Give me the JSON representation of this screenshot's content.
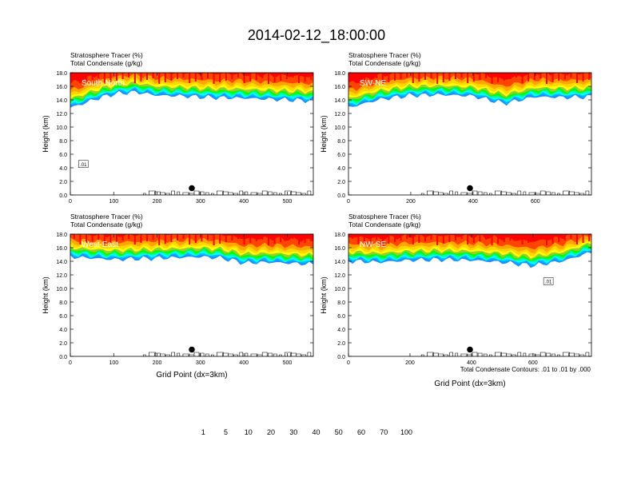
{
  "figure": {
    "title": "2014-02-12_18:00:00",
    "contour_note": "Total Condensate Contours: .01 to .01 by .000"
  },
  "colorbar": {
    "labels": [
      "1",
      "5",
      "10",
      "20",
      "30",
      "40",
      "50",
      "60",
      "70",
      "100"
    ],
    "colors": [
      "#ffffff",
      "#1e90ff",
      "#00bfff",
      "#00ffff",
      "#00fa9a",
      "#00ff00",
      "#9acd32",
      "#ffff00",
      "#ffd700",
      "#ffa500",
      "#ff4500",
      "#ff0000"
    ]
  },
  "chart_data": [
    {
      "type": "heatmap",
      "panel_label": "South-North",
      "title_line1": "Stratosphere Tracer   (%)",
      "title_line2": "Total Condensate   (g/kg)",
      "ylabel": "Height (km)",
      "xlabel": "",
      "xlim": [
        0,
        560
      ],
      "ylim": [
        0,
        18
      ],
      "xticks": [
        "0",
        "100",
        "200",
        "300",
        "400",
        "500"
      ],
      "yticks": [
        "0.0",
        "2.0",
        "4.0",
        "6.0",
        "8.0",
        "10.0",
        "12.0",
        "14.0",
        "16.0",
        "18.0"
      ],
      "contour_label": ".01",
      "marker": {
        "x": 280,
        "y": 1.0
      },
      "tracer_base_km": [
        [
          0,
          13
        ],
        [
          30,
          13.6
        ],
        [
          60,
          14.3
        ],
        [
          100,
          15
        ],
        [
          150,
          15.3
        ],
        [
          200,
          14.8
        ],
        [
          260,
          14.7
        ],
        [
          320,
          14.5
        ],
        [
          400,
          14.4
        ],
        [
          480,
          14.2
        ],
        [
          560,
          14.0
        ]
      ]
    },
    {
      "type": "heatmap",
      "panel_label": "SW-NE",
      "title_line1": "Stratosphere Tracer   (%)",
      "title_line2": "Total Condensate   (g/kg)",
      "ylabel": "Height (km)",
      "xlabel": "",
      "xlim": [
        0,
        780
      ],
      "ylim": [
        0,
        18
      ],
      "xticks": [
        "0",
        "200",
        "400",
        "600"
      ],
      "yticks": [
        "0.0",
        "2.0",
        "4.0",
        "6.0",
        "8.0",
        "10.0",
        "12.0",
        "14.0",
        "16.0",
        "18.0"
      ],
      "contour_label": "",
      "marker": {
        "x": 390,
        "y": 1.0
      },
      "tracer_base_km": [
        [
          0,
          13
        ],
        [
          100,
          14.2
        ],
        [
          200,
          14.8
        ],
        [
          300,
          14.9
        ],
        [
          400,
          14.7
        ],
        [
          500,
          13.6
        ],
        [
          600,
          14.6
        ],
        [
          700,
          14.5
        ],
        [
          780,
          14.6
        ]
      ]
    },
    {
      "type": "heatmap",
      "panel_label": "West-East",
      "title_line1": "Stratosphere Tracer   (%)",
      "title_line2": "Total Condensate   (g/kg)",
      "ylabel": "Height (km)",
      "xlabel": "Grid Point (dx=3km)",
      "xlim": [
        0,
        560
      ],
      "ylim": [
        0,
        18
      ],
      "xticks": [
        "0",
        "100",
        "200",
        "300",
        "400",
        "500"
      ],
      "yticks": [
        "0.0",
        "2.0",
        "4.0",
        "6.0",
        "8.0",
        "10.0",
        "12.0",
        "14.0",
        "16.0",
        "18.0"
      ],
      "contour_label": "",
      "marker": {
        "x": 280,
        "y": 1.0
      },
      "tracer_base_km": [
        [
          0,
          14.8
        ],
        [
          100,
          14.4
        ],
        [
          200,
          14.6
        ],
        [
          300,
          14.8
        ],
        [
          350,
          14.6
        ],
        [
          400,
          13.9
        ],
        [
          460,
          14.0
        ],
        [
          560,
          13.7
        ]
      ]
    },
    {
      "type": "heatmap",
      "panel_label": "NW-SE",
      "title_line1": "Stratosphere Tracer   (%)",
      "title_line2": "Total Condensate   (g/kg)",
      "ylabel": "Height (km)",
      "xlabel": "Grid Point (dx=3km)",
      "xlim": [
        0,
        790
      ],
      "ylim": [
        0,
        18
      ],
      "xticks": [
        "0",
        "200",
        "400",
        "600"
      ],
      "yticks": [
        "0.0",
        "2.0",
        "4.0",
        "6.0",
        "8.0",
        "10.0",
        "12.0",
        "14.0",
        "16.0",
        "18.0"
      ],
      "contour_label": ".01",
      "marker": {
        "x": 395,
        "y": 1.0
      },
      "tracer_base_km": [
        [
          0,
          14.2
        ],
        [
          100,
          14.0
        ],
        [
          200,
          14.3
        ],
        [
          300,
          14.4
        ],
        [
          400,
          14.3
        ],
        [
          500,
          14.0
        ],
        [
          600,
          13.5
        ],
        [
          700,
          14.2
        ],
        [
          790,
          15.5
        ]
      ]
    }
  ]
}
